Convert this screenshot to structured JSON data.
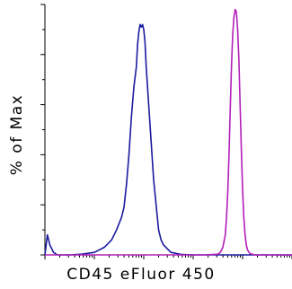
{
  "chart_data": {
    "type": "line",
    "title": "",
    "xlabel": "CD45 eFluor 450",
    "ylabel": "% of Max",
    "x_scale": "log",
    "grid": false,
    "legend": "none",
    "ylim": [
      0,
      100
    ],
    "series": [
      {
        "color": "#1a1aa0",
        "points": [
          [
            0,
            0
          ],
          [
            0.01,
            8
          ],
          [
            0.02,
            4
          ],
          [
            0.035,
            1
          ],
          [
            0.05,
            0
          ],
          [
            0.1,
            0
          ],
          [
            0.15,
            0.3
          ],
          [
            0.2,
            1
          ],
          [
            0.24,
            3
          ],
          [
            0.27,
            6
          ],
          [
            0.29,
            10
          ],
          [
            0.31,
            15
          ],
          [
            0.32,
            19
          ],
          [
            0.33,
            28
          ],
          [
            0.34,
            40
          ],
          [
            0.35,
            55
          ],
          [
            0.36,
            67
          ],
          [
            0.37,
            75
          ],
          [
            0.375,
            84
          ],
          [
            0.38,
            89
          ],
          [
            0.385,
            92
          ],
          [
            0.39,
            91
          ],
          [
            0.395,
            92
          ],
          [
            0.4,
            90
          ],
          [
            0.405,
            85
          ],
          [
            0.41,
            75
          ],
          [
            0.42,
            60
          ],
          [
            0.43,
            45
          ],
          [
            0.44,
            30
          ],
          [
            0.45,
            20
          ],
          [
            0.46,
            10
          ],
          [
            0.47,
            6
          ],
          [
            0.48,
            4
          ],
          [
            0.49,
            3
          ],
          [
            0.51,
            1
          ],
          [
            0.55,
            0.2
          ],
          [
            0.6,
            0
          ],
          [
            1,
            0
          ]
        ]
      },
      {
        "color": "#b21fb8",
        "points": [
          [
            0,
            0
          ],
          [
            0.65,
            0
          ],
          [
            0.7,
            0.3
          ],
          [
            0.71,
            1
          ],
          [
            0.72,
            3
          ],
          [
            0.73,
            8
          ],
          [
            0.735,
            15
          ],
          [
            0.74,
            25
          ],
          [
            0.745,
            40
          ],
          [
            0.75,
            58
          ],
          [
            0.755,
            75
          ],
          [
            0.76,
            88
          ],
          [
            0.765,
            95
          ],
          [
            0.77,
            98
          ],
          [
            0.775,
            97
          ],
          [
            0.78,
            90
          ],
          [
            0.785,
            78
          ],
          [
            0.79,
            60
          ],
          [
            0.795,
            42
          ],
          [
            0.8,
            26
          ],
          [
            0.805,
            15
          ],
          [
            0.81,
            8
          ],
          [
            0.815,
            4
          ],
          [
            0.82,
            2
          ],
          [
            0.83,
            0.5
          ],
          [
            0.85,
            0
          ],
          [
            1,
            0
          ]
        ]
      }
    ]
  }
}
